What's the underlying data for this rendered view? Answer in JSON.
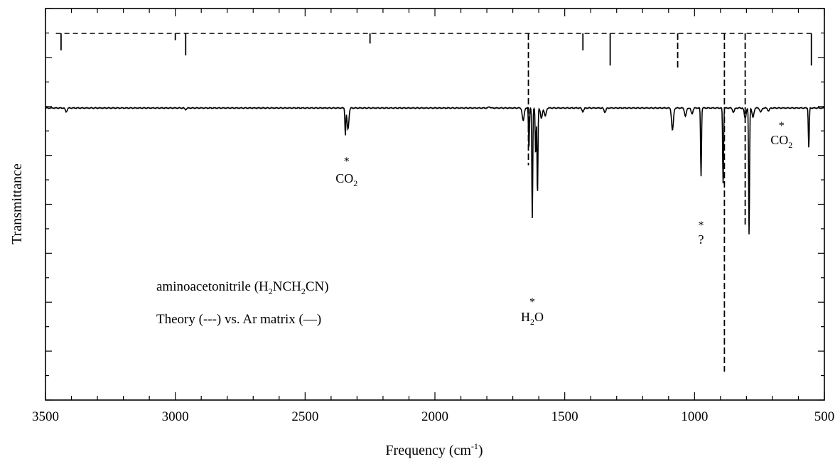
{
  "chart_data": {
    "type": "line",
    "xlabel": "Frequency (cm",
    "xlabel_sup": "-1",
    "xlabel_tail": ")",
    "ylabel": "Transmittance",
    "xlim": [
      3500,
      500
    ],
    "x_reversed": true,
    "x_ticks": [
      3500,
      3000,
      2500,
      2000,
      1500,
      1000,
      500
    ],
    "x_tick_labels": [
      "3500",
      "3000",
      "2500",
      "2000",
      "1500",
      "1000",
      "500"
    ],
    "y_tick_labels_shown": false,
    "series": [
      {
        "name": "Theory",
        "style": "dashed",
        "color": "#000000",
        "sticks": [
          {
            "x": 3440,
            "depth": 0.05
          },
          {
            "x": 3000,
            "depth": 0.02
          },
          {
            "x": 2960,
            "depth": 0.065
          },
          {
            "x": 2250,
            "depth": 0.03
          },
          {
            "x": 1640,
            "depth": 0.39
          },
          {
            "x": 1430,
            "depth": 0.05
          },
          {
            "x": 1325,
            "depth": 0.095
          },
          {
            "x": 1065,
            "depth": 0.105
          },
          {
            "x": 885,
            "depth": 1.0
          },
          {
            "x": 805,
            "depth": 0.57
          },
          {
            "x": 550,
            "depth": 0.095
          }
        ]
      },
      {
        "name": "Ar matrix",
        "style": "solid",
        "color": "#000000",
        "bands": [
          {
            "x": 3420,
            "depth": 0.016
          },
          {
            "x": 2960,
            "depth": 0.006
          },
          {
            "x": 2345,
            "depth": 0.115
          },
          {
            "x": 2335,
            "depth": 0.09
          },
          {
            "x": 1790,
            "depth": -0.005
          },
          {
            "x": 1660,
            "depth": 0.055
          },
          {
            "x": 1638,
            "depth": 0.17
          },
          {
            "x": 1625,
            "depth": 0.47
          },
          {
            "x": 1612,
            "depth": 0.2
          },
          {
            "x": 1605,
            "depth": 0.37
          },
          {
            "x": 1590,
            "depth": 0.045
          },
          {
            "x": 1575,
            "depth": 0.035
          },
          {
            "x": 1430,
            "depth": 0.015
          },
          {
            "x": 1345,
            "depth": 0.018
          },
          {
            "x": 1085,
            "depth": 0.095
          },
          {
            "x": 1035,
            "depth": 0.035
          },
          {
            "x": 1010,
            "depth": 0.025
          },
          {
            "x": 975,
            "depth": 0.29
          },
          {
            "x": 890,
            "depth": 0.32
          },
          {
            "x": 850,
            "depth": 0.018
          },
          {
            "x": 805,
            "depth": 0.043
          },
          {
            "x": 790,
            "depth": 0.54
          },
          {
            "x": 775,
            "depth": 0.04
          },
          {
            "x": 745,
            "depth": 0.018
          },
          {
            "x": 715,
            "depth": 0.012
          },
          {
            "x": 560,
            "depth": 0.17
          }
        ]
      }
    ],
    "annotations": [
      {
        "label": "CO",
        "sub": "2",
        "x": 2340
      },
      {
        "label": "H",
        "sub": "2",
        "tail": "O",
        "x": 1625
      },
      {
        "label": "?",
        "x": 975
      },
      {
        "label": "CO",
        "sub": "2",
        "x": 665
      }
    ],
    "legend_text": {
      "line1_a": "aminoacetonitrile (H",
      "line1_s1": "2",
      "line1_b": "NCH",
      "line1_s2": "2",
      "line1_c": "CN)",
      "line2": "Theory (---) vs.  Ar matrix (—)"
    },
    "grid": false
  }
}
